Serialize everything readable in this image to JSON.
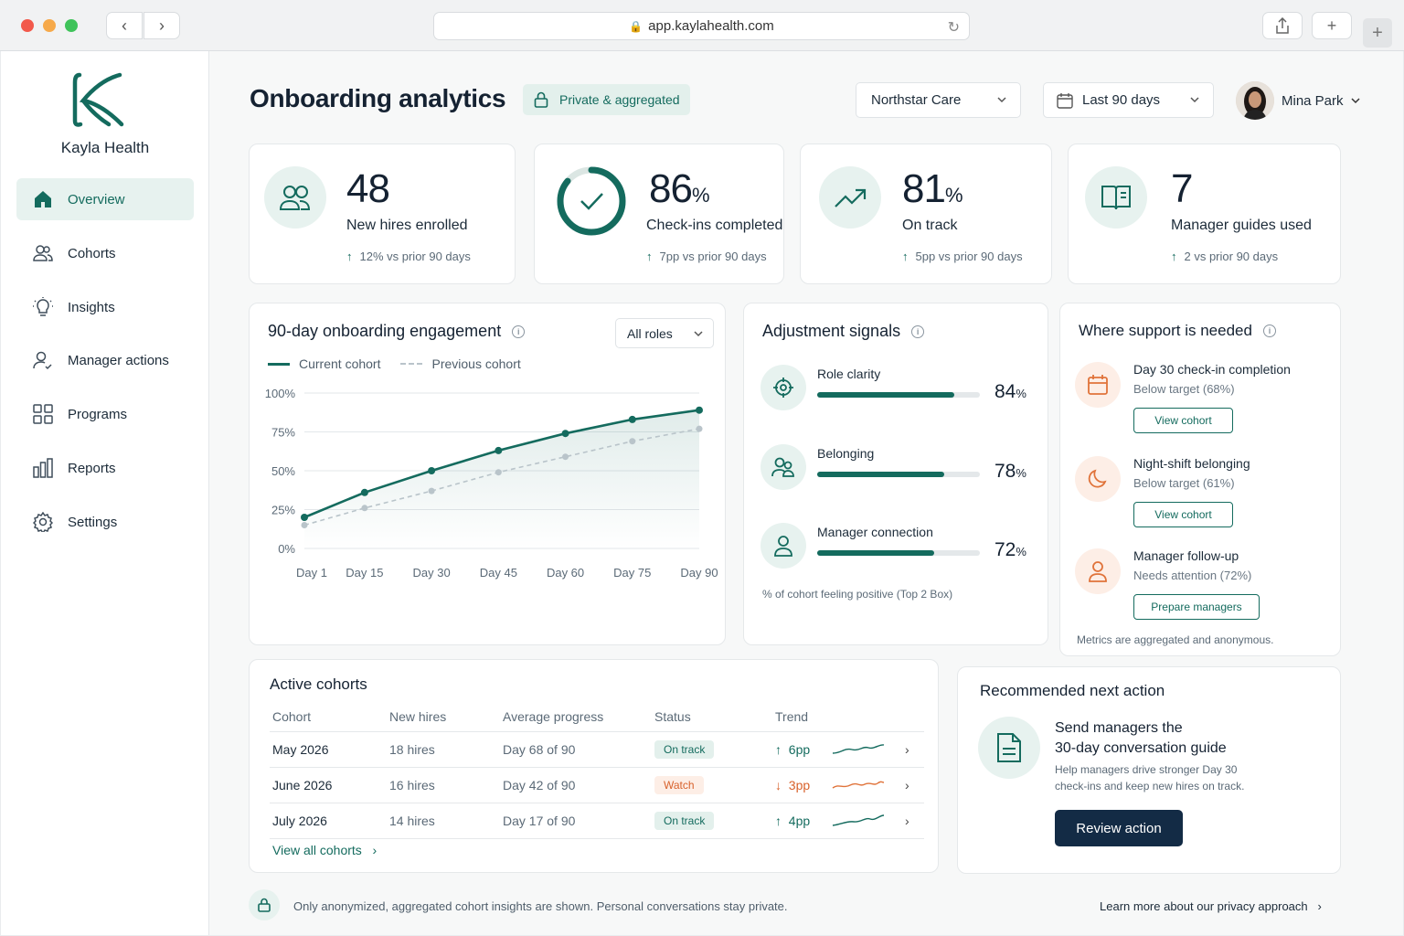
{
  "browser": {
    "url": "app.kaylahealth.com"
  },
  "brand": {
    "name": "Kayla Health"
  },
  "sidebar": {
    "items": [
      {
        "label": "Overview",
        "icon": "home-icon",
        "active": true
      },
      {
        "label": "Cohorts",
        "icon": "users-icon"
      },
      {
        "label": "Insights",
        "icon": "lightbulb-icon"
      },
      {
        "label": "Manager actions",
        "icon": "user-check-icon"
      },
      {
        "label": "Programs",
        "icon": "grid-icon"
      },
      {
        "label": "Reports",
        "icon": "bar-chart-icon"
      },
      {
        "label": "Settings",
        "icon": "gear-icon"
      }
    ]
  },
  "header": {
    "title": "Onboarding analytics",
    "privacy_badge": "Private & aggregated",
    "org_select": "Northstar Care",
    "date_select": "Last 90 days",
    "user_name": "Mina Park"
  },
  "stats": [
    {
      "value": "48",
      "suffix": "",
      "label": "New hires enrolled",
      "delta": "12% vs prior 90 days",
      "icon": "users-icon"
    },
    {
      "value": "86",
      "suffix": "%",
      "label": "Check-ins completed",
      "delta": "7pp vs prior 90 days",
      "icon": "check-ring-icon",
      "ring_fraction": 0.86
    },
    {
      "value": "81",
      "suffix": "%",
      "label": "On track",
      "delta": "5pp vs prior 90 days",
      "icon": "trending-up-icon"
    },
    {
      "value": "7",
      "suffix": "",
      "label": "Manager guides used",
      "delta": "2 vs prior 90 days",
      "icon": "book-icon"
    }
  ],
  "engagement": {
    "title": "90-day onboarding engagement",
    "filter": "All roles",
    "legend_current": "Current cohort",
    "legend_previous": "Previous cohort"
  },
  "chart_data": {
    "type": "line",
    "title": "90-day onboarding engagement",
    "x": [
      "Day 1",
      "Day 15",
      "Day 30",
      "Day 45",
      "Day 60",
      "Day 75",
      "Day 90"
    ],
    "x_points": [
      1,
      10,
      20,
      30,
      40,
      50,
      60
    ],
    "y_ticks": [
      "0%",
      "25%",
      "50%",
      "75%",
      "100%"
    ],
    "ylim": [
      0,
      100
    ],
    "series": [
      {
        "name": "Current cohort",
        "values": [
          20,
          36,
          50,
          63,
          74,
          83,
          89
        ],
        "color": "#146b5e",
        "style": "solid"
      },
      {
        "name": "Previous cohort",
        "values": [
          15,
          26,
          37,
          49,
          59,
          69,
          77
        ],
        "color": "#b9c4ca",
        "style": "dashed"
      }
    ],
    "grid": true,
    "legend": "top-left"
  },
  "signals": {
    "title": "Adjustment signals",
    "items": [
      {
        "label": "Role clarity",
        "value": "84",
        "fraction": 0.84,
        "icon": "target-icon"
      },
      {
        "label": "Belonging",
        "value": "78",
        "fraction": 0.78,
        "icon": "users-icon"
      },
      {
        "label": "Manager connection",
        "value": "72",
        "fraction": 0.72,
        "icon": "user-icon"
      }
    ],
    "pct": "%",
    "footnote": "% of cohort feeling positive (Top 2 Box)"
  },
  "support": {
    "title": "Where support is needed",
    "items": [
      {
        "title": "Day 30 check-in completion",
        "sub": "Below target (68%)",
        "button": "View cohort",
        "icon": "calendar-icon"
      },
      {
        "title": "Night-shift belonging",
        "sub": "Below target (61%)",
        "button": "View cohort",
        "icon": "moon-icon"
      },
      {
        "title": "Manager follow-up",
        "sub": "Needs attention (72%)",
        "button": "Prepare managers",
        "icon": "user-icon"
      }
    ],
    "footnote": "Metrics are aggregated and anonymous."
  },
  "cohorts": {
    "title": "Active cohorts",
    "columns": [
      "Cohort",
      "New hires",
      "Average progress",
      "Status",
      "Trend"
    ],
    "rows": [
      {
        "cohort": "May 2026",
        "hires": "18 hires",
        "progress": "Day 68 of 90",
        "status": "On track",
        "status_kind": "ok",
        "trend": "6pp",
        "trend_dir": "up"
      },
      {
        "cohort": "June 2026",
        "hires": "16 hires",
        "progress": "Day 42 of 90",
        "status": "Watch",
        "status_kind": "watch",
        "trend": "3pp",
        "trend_dir": "down"
      },
      {
        "cohort": "July 2026",
        "hires": "14 hires",
        "progress": "Day 17 of 90",
        "status": "On track",
        "status_kind": "ok",
        "trend": "4pp",
        "trend_dir": "up"
      }
    ],
    "view_all": "View all cohorts"
  },
  "recommend": {
    "title": "Recommended next action",
    "heading_line1": "Send managers the",
    "heading_line2": "30-day conversation guide",
    "body_line1": "Help managers drive stronger Day 30",
    "body_line2": "check-ins and keep new hires on track.",
    "button": "Review action"
  },
  "footer": {
    "text": "Only anonymized, aggregated cohort insights are shown. Personal conversations stay private.",
    "link": "Learn more about our privacy approach"
  },
  "colors": {
    "accent": "#146b5e",
    "accent_light": "#e7f2ef",
    "warn": "#d8622c",
    "navy": "#132b45"
  }
}
